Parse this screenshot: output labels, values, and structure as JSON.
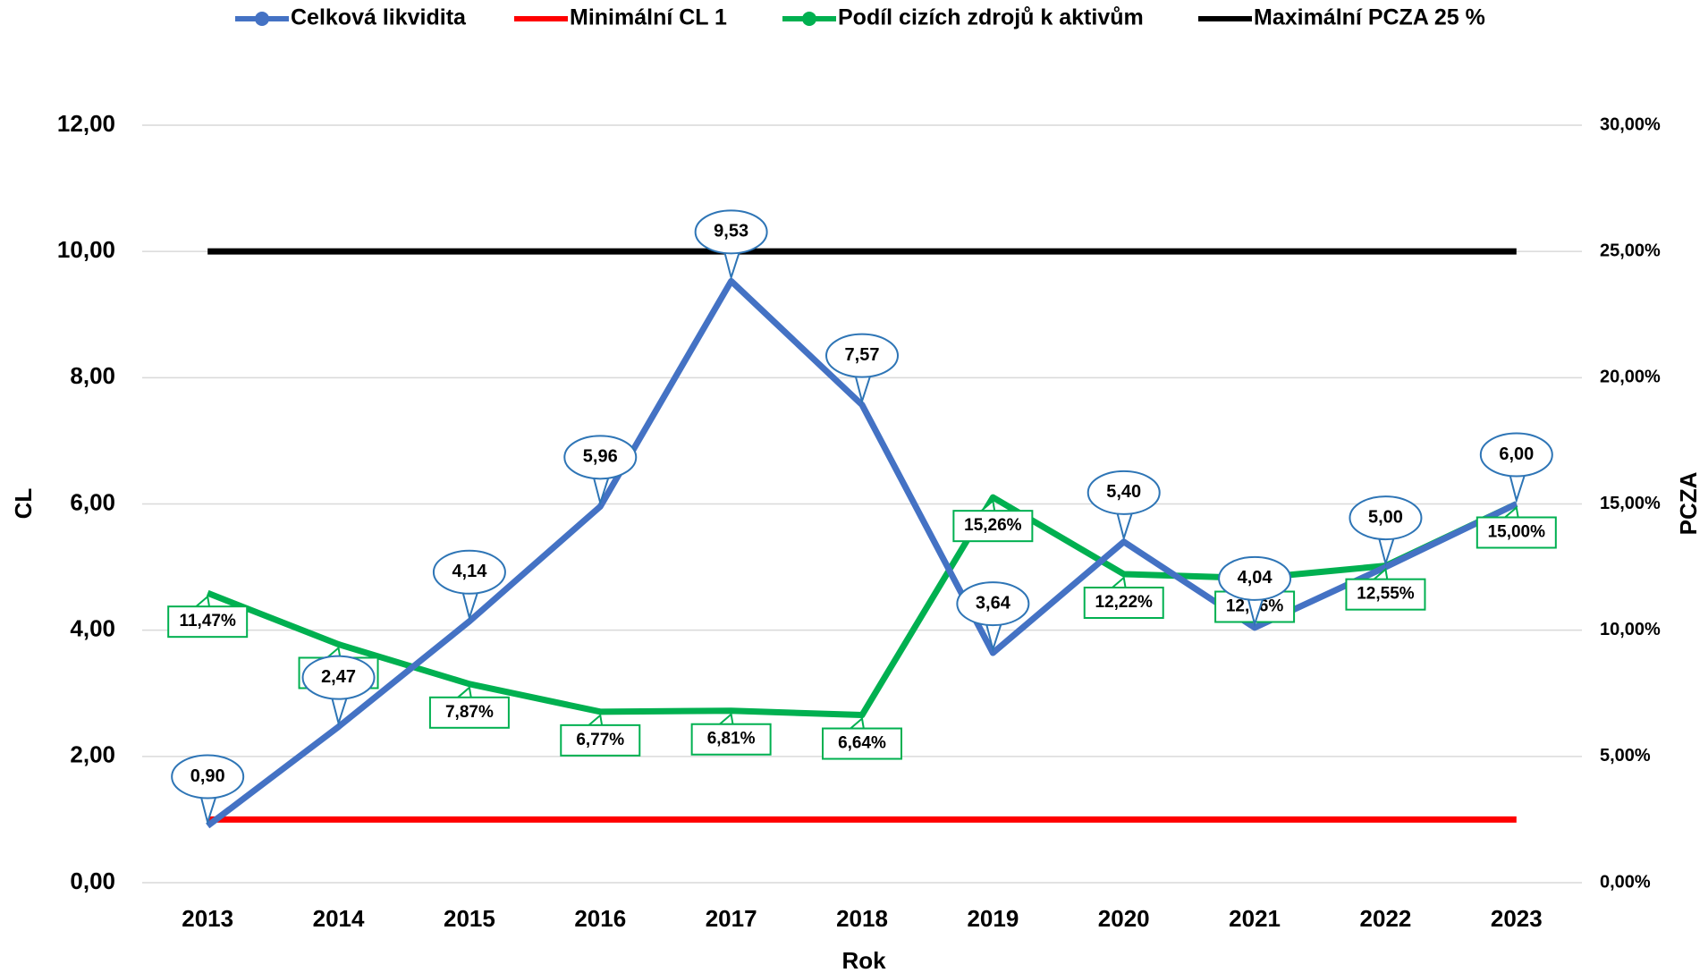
{
  "chart_data": {
    "type": "line",
    "xlabel": "Rok",
    "ylabel": "CL",
    "y2label": "PCZA",
    "categories": [
      "2013",
      "2014",
      "2015",
      "2016",
      "2017",
      "2018",
      "2019",
      "2020",
      "2021",
      "2022",
      "2023"
    ],
    "series": [
      {
        "name": "Celková likvidita",
        "color": "#4472c4",
        "marker": true,
        "labels": "callout",
        "values": [
          0.9,
          2.47,
          4.14,
          5.96,
          9.53,
          7.57,
          3.64,
          5.4,
          4.04,
          5.0,
          6.0
        ],
        "value_labels": [
          "0,90",
          "2,47",
          "4,14",
          "5,96",
          "9,53",
          "7,57",
          "3,64",
          "5,40",
          "4,04",
          "5,00",
          "6,00"
        ]
      },
      {
        "name": "Minimální CL 1",
        "color": "#ff0000",
        "marker": false,
        "values": [
          1,
          1,
          1,
          1,
          1,
          1,
          1,
          1,
          1,
          1,
          1
        ]
      },
      {
        "name": "Podíl cizích zdrojů k aktivům",
        "color": "#00b050",
        "marker": true,
        "labels": "box",
        "axis": "y2",
        "values": [
          11.47,
          9.44,
          7.87,
          6.77,
          6.81,
          6.64,
          15.26,
          12.22,
          12.06,
          12.55,
          15.0
        ],
        "value_labels": [
          "11,47%",
          "9,44%",
          "7,87%",
          "6,77%",
          "6,81%",
          "6,64%",
          "15,26%",
          "12,22%",
          "12,06%",
          "12,55%",
          "15,00%"
        ]
      },
      {
        "name": "Maximální  PCZA 25 %",
        "color": "#000000",
        "marker": false,
        "axis": "y2",
        "values": [
          25,
          25,
          25,
          25,
          25,
          25,
          25,
          25,
          25,
          25,
          25
        ]
      }
    ],
    "ylim": [
      0,
      12
    ],
    "yticks": [
      {
        "value": 0,
        "label": "0,00"
      },
      {
        "value": 2,
        "label": "2,00"
      },
      {
        "value": 4,
        "label": "4,00"
      },
      {
        "value": 6,
        "label": "6,00"
      },
      {
        "value": 8,
        "label": "8,00"
      },
      {
        "value": 10,
        "label": "10,00"
      },
      {
        "value": 12,
        "label": "12,00"
      }
    ],
    "y2lim": [
      0,
      30
    ],
    "y2ticks": [
      {
        "value": 0,
        "label": "0,00%"
      },
      {
        "value": 5,
        "label": "5,00%"
      },
      {
        "value": 10,
        "label": "10,00%"
      },
      {
        "value": 15,
        "label": "15,00%"
      },
      {
        "value": 20,
        "label": "20,00%"
      },
      {
        "value": 25,
        "label": "25,00%"
      },
      {
        "value": 30,
        "label": "30,00%"
      }
    ],
    "grid": true,
    "legend": "top"
  }
}
